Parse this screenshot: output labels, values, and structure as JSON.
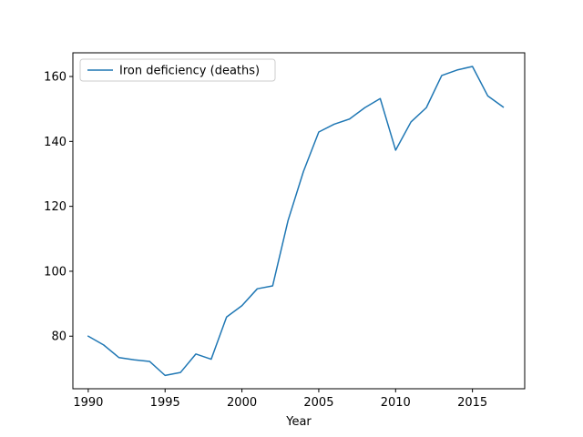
{
  "chart_data": {
    "type": "line",
    "title": "",
    "xlabel": "Year",
    "ylabel": "",
    "xlim": [
      1989,
      2018.4
    ],
    "ylim": [
      63.8,
      167.3
    ],
    "xticks": [
      1990,
      1995,
      2000,
      2005,
      2010,
      2015
    ],
    "yticks": [
      80,
      100,
      120,
      140,
      160
    ],
    "grid": false,
    "legend_position": "top-left",
    "series": [
      {
        "name": "Iron deficiency (deaths)",
        "color": "#1f77b4",
        "x": [
          1990,
          1991,
          1992,
          1993,
          1994,
          1995,
          1996,
          1997,
          1998,
          1999,
          2000,
          2001,
          2002,
          2003,
          2004,
          2005,
          2006,
          2007,
          2008,
          2009,
          2010,
          2011,
          2012,
          2013,
          2014,
          2015,
          2016,
          2017
        ],
        "y": [
          80.0,
          77.3,
          73.4,
          72.7,
          72.2,
          67.9,
          68.8,
          74.5,
          72.9,
          85.9,
          89.4,
          94.6,
          95.5,
          115.6,
          130.7,
          142.9,
          145.3,
          146.9,
          150.4,
          153.2,
          137.3,
          146.0,
          150.4,
          160.3,
          162.0,
          163.1,
          154.0,
          150.6
        ]
      }
    ]
  }
}
